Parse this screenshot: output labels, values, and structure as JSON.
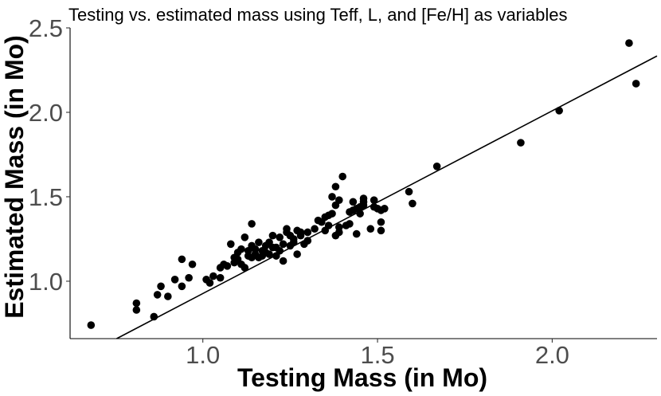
{
  "chart_data": {
    "type": "scatter",
    "title": "Testing vs. estimated mass using Teff, L, and [Fe/H] as variables",
    "xlabel": "Testing Mass (in Mo)",
    "ylabel": "Estimated Mass (in Mo)",
    "xlim": [
      0.62,
      2.3
    ],
    "ylim": [
      0.66,
      2.5
    ],
    "x_ticks": [
      1.0,
      1.5,
      2.0
    ],
    "x_tick_labels": [
      "1.0",
      "1.5",
      "2.0"
    ],
    "y_ticks": [
      1.0,
      1.5,
      2.0,
      2.5
    ],
    "y_tick_labels": [
      "1.0",
      "1.5",
      "2.0",
      "2.5"
    ],
    "grid": false,
    "fit_line": {
      "intercept": -0.155,
      "slope": 1.082
    },
    "series": [
      {
        "name": "mass estimates",
        "color": "#000000",
        "points": [
          [
            0.68,
            0.74
          ],
          [
            0.81,
            0.87
          ],
          [
            0.81,
            0.83
          ],
          [
            0.86,
            0.79
          ],
          [
            0.87,
            0.92
          ],
          [
            0.88,
            0.97
          ],
          [
            0.9,
            0.91
          ],
          [
            0.92,
            1.01
          ],
          [
            0.94,
            0.97
          ],
          [
            0.94,
            1.13
          ],
          [
            0.96,
            1.02
          ],
          [
            0.97,
            1.1
          ],
          [
            1.01,
            1.01
          ],
          [
            1.02,
            0.99
          ],
          [
            1.03,
            1.03
          ],
          [
            1.05,
            1.02
          ],
          [
            1.05,
            1.08
          ],
          [
            1.06,
            1.1
          ],
          [
            1.07,
            1.09
          ],
          [
            1.08,
            1.22
          ],
          [
            1.09,
            1.11
          ],
          [
            1.09,
            1.14
          ],
          [
            1.1,
            1.13
          ],
          [
            1.1,
            1.17
          ],
          [
            1.11,
            1.1
          ],
          [
            1.11,
            1.19
          ],
          [
            1.12,
            1.08
          ],
          [
            1.12,
            1.26
          ],
          [
            1.13,
            1.15
          ],
          [
            1.13,
            1.18
          ],
          [
            1.14,
            1.14
          ],
          [
            1.14,
            1.21
          ],
          [
            1.14,
            1.34
          ],
          [
            1.15,
            1.16
          ],
          [
            1.15,
            1.19
          ],
          [
            1.16,
            1.14
          ],
          [
            1.16,
            1.23
          ],
          [
            1.17,
            1.18
          ],
          [
            1.17,
            1.15
          ],
          [
            1.18,
            1.21
          ],
          [
            1.18,
            1.17
          ],
          [
            1.19,
            1.16
          ],
          [
            1.19,
            1.23
          ],
          [
            1.2,
            1.27
          ],
          [
            1.2,
            1.2
          ],
          [
            1.21,
            1.15
          ],
          [
            1.21,
            1.2
          ],
          [
            1.22,
            1.18
          ],
          [
            1.22,
            1.26
          ],
          [
            1.23,
            1.22
          ],
          [
            1.23,
            1.12
          ],
          [
            1.24,
            1.29
          ],
          [
            1.24,
            1.31
          ],
          [
            1.25,
            1.21
          ],
          [
            1.25,
            1.27
          ],
          [
            1.26,
            1.25
          ],
          [
            1.26,
            1.23
          ],
          [
            1.27,
            1.3
          ],
          [
            1.27,
            1.16
          ],
          [
            1.28,
            1.29
          ],
          [
            1.28,
            1.27
          ],
          [
            1.29,
            1.22
          ],
          [
            1.3,
            1.29
          ],
          [
            1.3,
            1.24
          ],
          [
            1.32,
            1.31
          ],
          [
            1.33,
            1.36
          ],
          [
            1.34,
            1.35
          ],
          [
            1.35,
            1.3
          ],
          [
            1.35,
            1.38
          ],
          [
            1.36,
            1.33
          ],
          [
            1.36,
            1.39
          ],
          [
            1.37,
            1.4
          ],
          [
            1.37,
            1.5
          ],
          [
            1.38,
            1.45
          ],
          [
            1.38,
            1.56
          ],
          [
            1.38,
            1.27
          ],
          [
            1.39,
            1.32
          ],
          [
            1.39,
            1.29
          ],
          [
            1.39,
            1.48
          ],
          [
            1.4,
            1.62
          ],
          [
            1.41,
            1.33
          ],
          [
            1.42,
            1.34
          ],
          [
            1.42,
            1.41
          ],
          [
            1.43,
            1.42
          ],
          [
            1.43,
            1.47
          ],
          [
            1.44,
            1.43
          ],
          [
            1.44,
            1.28
          ],
          [
            1.45,
            1.44
          ],
          [
            1.45,
            1.4
          ],
          [
            1.46,
            1.49
          ],
          [
            1.46,
            1.47
          ],
          [
            1.46,
            1.45
          ],
          [
            1.48,
            1.31
          ],
          [
            1.49,
            1.44
          ],
          [
            1.49,
            1.48
          ],
          [
            1.5,
            1.43
          ],
          [
            1.51,
            1.35
          ],
          [
            1.51,
            1.3
          ],
          [
            1.51,
            1.42
          ],
          [
            1.52,
            1.43
          ],
          [
            1.59,
            1.53
          ],
          [
            1.6,
            1.46
          ],
          [
            1.67,
            1.68
          ],
          [
            1.91,
            1.82
          ],
          [
            2.02,
            2.01
          ],
          [
            2.22,
            2.41
          ],
          [
            2.24,
            2.17
          ]
        ]
      }
    ]
  }
}
